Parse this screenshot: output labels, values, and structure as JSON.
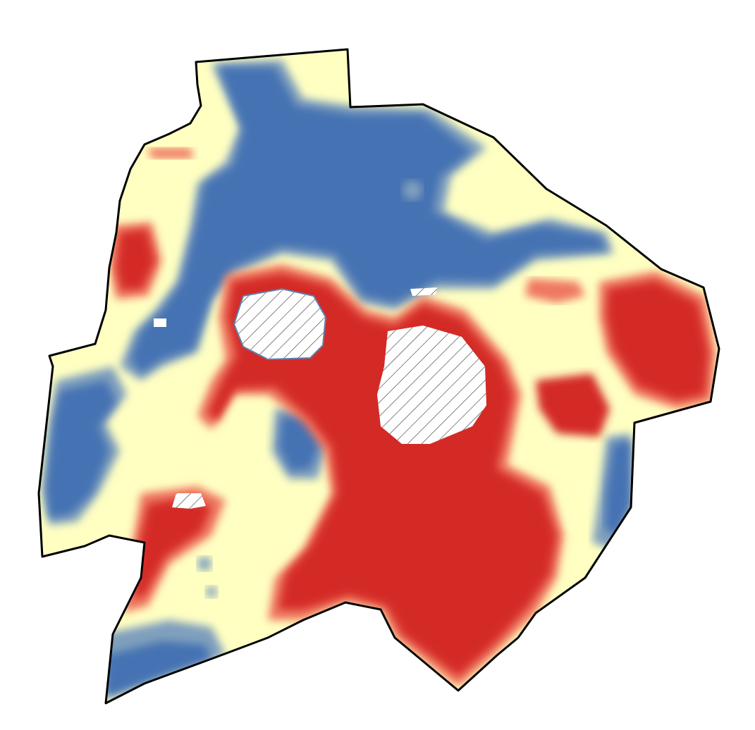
{
  "map": {
    "type": "choropleth-raster",
    "legend": [],
    "colors": {
      "high": "#d42b25",
      "medium_high": "#ef7861",
      "neutral": "#ffffc2",
      "medium_low": "#7f9fbd",
      "low": "#4472b3",
      "no_data_hatch": "#333333",
      "boundary": "#000000",
      "background": "#ffffff"
    },
    "no_data_areas": 4
  }
}
